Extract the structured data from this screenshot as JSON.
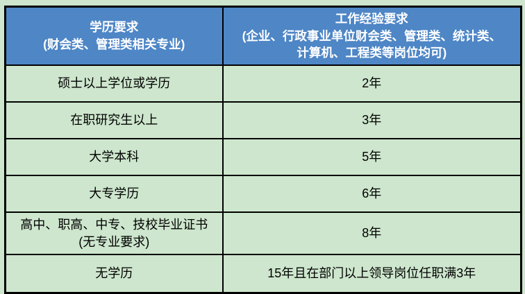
{
  "page": {
    "background_color": "#cde6cd"
  },
  "table": {
    "title_semantics": "education-vs-work-experience-requirements",
    "colors": {
      "header_bg": "#4e86c6",
      "header_text": "#ffffff",
      "body_bg": "#cde6cd",
      "body_text": "#000000",
      "grid_border": "#000000"
    },
    "header": {
      "education": "学历要求\n(财会类、管理类相关专业)",
      "experience": "工作经验要求\n(企业、行政事业单位财会类、管理类、统计类、\n计算机、工程类等岗位均可)"
    },
    "rows": [
      {
        "education": "硕士以上学位或学历",
        "experience": "2年"
      },
      {
        "education": "在职研究生以上",
        "experience": "3年"
      },
      {
        "education": "大学本科",
        "experience": "5年"
      },
      {
        "education": "大专学历",
        "experience": "6年"
      },
      {
        "education": "高中、职高、中专、技校毕业证书\n(无专业要求)",
        "experience": "8年"
      },
      {
        "education": "无学历",
        "experience": "15年且在部门以上领导岗位任职满3年"
      }
    ]
  }
}
